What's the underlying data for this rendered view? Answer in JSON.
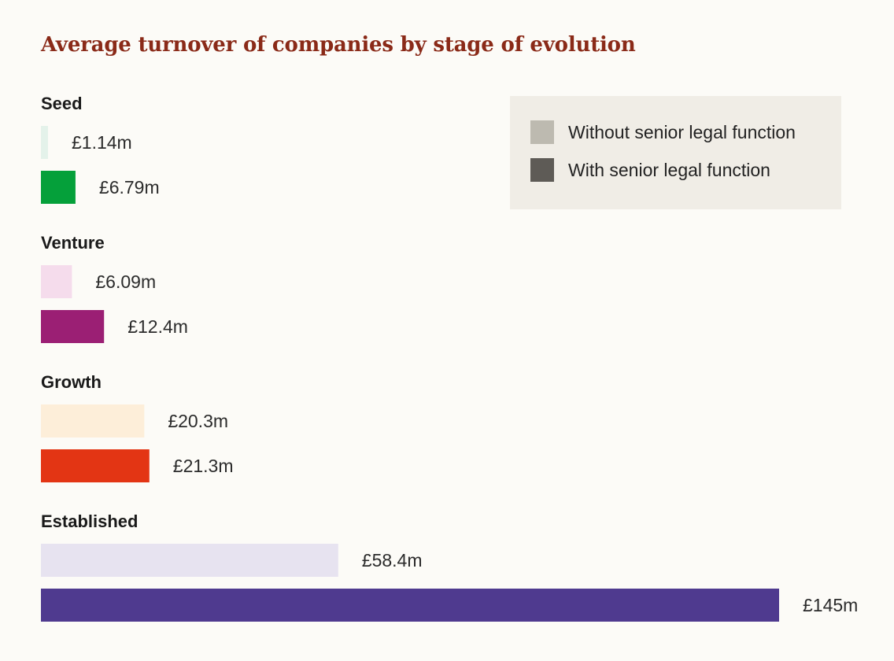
{
  "chart_data": {
    "type": "bar",
    "orientation": "horizontal",
    "title": "Average turnover of companies by stage of evolution",
    "categories": [
      "Seed",
      "Venture",
      "Growth",
      "Established"
    ],
    "series": [
      {
        "name": "Without senior legal function",
        "values": [
          1.14,
          6.09,
          20.3,
          58.4
        ],
        "labels": [
          "£1.14m",
          "£6.09m",
          "£20.3m",
          "£58.4m"
        ],
        "colors": [
          "#e4f2ea",
          "#f5dcec",
          "#fdeed9",
          "#e7e3f0"
        ]
      },
      {
        "name": "With senior legal function",
        "values": [
          6.79,
          12.4,
          21.3,
          145
        ],
        "labels": [
          "£6.79m",
          "£12.4m",
          "£21.3m",
          "£145m"
        ],
        "colors": [
          "#05a03a",
          "#9b1f74",
          "#e33514",
          "#4f3a8f"
        ]
      }
    ],
    "unit": "£m",
    "xlim": [
      0,
      145
    ],
    "grid": false,
    "legend_position": "top-right"
  },
  "legend": {
    "items": [
      {
        "label": "Without senior legal function",
        "color": "#bdbab0"
      },
      {
        "label": "With senior legal function",
        "color": "#5e5b56"
      }
    ]
  }
}
